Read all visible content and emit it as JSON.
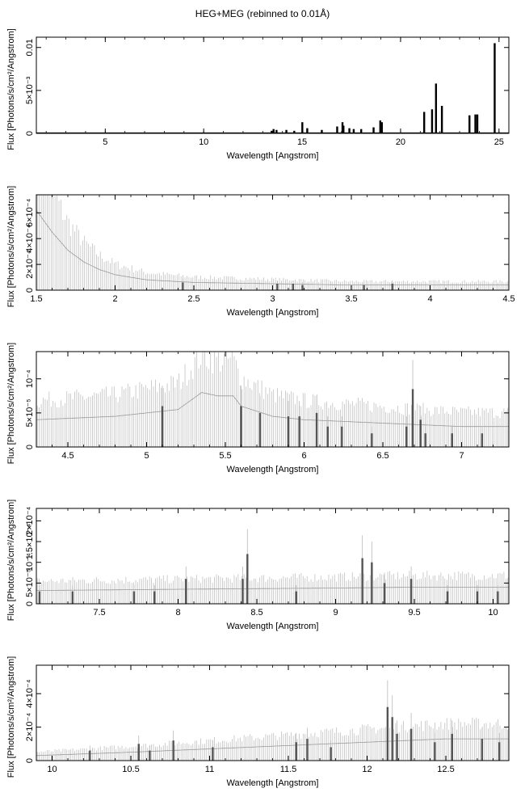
{
  "title": "HEG+MEG (rebinned to 0.01Å)",
  "colors": {
    "line": "#000000",
    "errorbar": "#b8b8b8",
    "dense": "#555555"
  },
  "chart_data": [
    {
      "type": "line",
      "xlabel": "Wavelength [Angstrom]",
      "ylabel": "Flux [Photons/s/cm²/Angstrom]",
      "xlim": [
        1.5,
        25.5
      ],
      "ylim": [
        0,
        0.0112
      ],
      "xticks": [
        5,
        10,
        15,
        20,
        25
      ],
      "xtick_labels": [
        "5",
        "10",
        "15",
        "20",
        "25"
      ],
      "yticks": [
        0,
        0.005,
        0.01
      ],
      "ytick_labels": [
        "0",
        "5×10⁻³",
        "0.01"
      ],
      "baseline": 5e-05,
      "lines": [
        {
          "x": 13.45,
          "y": 0.0003
        },
        {
          "x": 13.55,
          "y": 0.0005
        },
        {
          "x": 13.7,
          "y": 0.0004
        },
        {
          "x": 14.2,
          "y": 0.0004
        },
        {
          "x": 14.6,
          "y": 0.0003
        },
        {
          "x": 15.01,
          "y": 0.0013
        },
        {
          "x": 15.26,
          "y": 0.0006
        },
        {
          "x": 16.0,
          "y": 0.0004
        },
        {
          "x": 16.78,
          "y": 0.0008
        },
        {
          "x": 17.05,
          "y": 0.0013
        },
        {
          "x": 17.1,
          "y": 0.0009
        },
        {
          "x": 17.4,
          "y": 0.0006
        },
        {
          "x": 17.62,
          "y": 0.0005
        },
        {
          "x": 18.0,
          "y": 0.0005
        },
        {
          "x": 18.63,
          "y": 0.0007
        },
        {
          "x": 18.97,
          "y": 0.0015
        },
        {
          "x": 19.05,
          "y": 0.0013
        },
        {
          "x": 21.2,
          "y": 0.0025
        },
        {
          "x": 21.6,
          "y": 0.0028
        },
        {
          "x": 21.8,
          "y": 0.0058
        },
        {
          "x": 22.1,
          "y": 0.0032
        },
        {
          "x": 23.5,
          "y": 0.0021
        },
        {
          "x": 23.8,
          "y": 0.0022
        },
        {
          "x": 23.9,
          "y": 0.0022
        },
        {
          "x": 24.78,
          "y": 0.0105
        }
      ]
    },
    {
      "type": "line",
      "xlabel": "Wavelength [Angstrom]",
      "ylabel": "Flux [Photons/s/cm²/Angstrom]",
      "xlim": [
        1.5,
        4.5
      ],
      "ylim": [
        0,
        0.00074
      ],
      "xticks": [
        1.5,
        2,
        2.5,
        3,
        3.5,
        4,
        4.5
      ],
      "xtick_labels": [
        "1.5",
        "2",
        "2.5",
        "3",
        "3.5",
        "4",
        "4.5"
      ],
      "yticks": [
        0,
        0.0002,
        0.0004,
        0.0006
      ],
      "ytick_labels": [
        "0",
        "2×10⁻⁴",
        "4×10⁻⁴",
        "6×10⁻⁴"
      ],
      "continuum": [
        [
          1.5,
          0.00062
        ],
        [
          1.6,
          0.00045
        ],
        [
          1.7,
          0.00031
        ],
        [
          1.8,
          0.00022
        ],
        [
          1.9,
          0.00016
        ],
        [
          2.0,
          0.00012
        ],
        [
          2.2,
          8e-05
        ],
        [
          2.5,
          6e-05
        ],
        [
          3.0,
          5e-05
        ],
        [
          3.5,
          4e-05
        ],
        [
          4.5,
          4e-05
        ]
      ],
      "lines": [
        {
          "x": 2.43,
          "y": 6e-05
        },
        {
          "x": 3.03,
          "y": 5e-05
        },
        {
          "x": 3.13,
          "y": 5e-05
        },
        {
          "x": 3.19,
          "y": 4e-05
        },
        {
          "x": 3.58,
          "y": 4e-05
        },
        {
          "x": 3.76,
          "y": 5e-05
        }
      ]
    },
    {
      "type": "line",
      "xlabel": "Wavelength [Angstrom]",
      "ylabel": "Flux [Photons/s/cm²/Angstrom]",
      "xlim": [
        4.3,
        7.3
      ],
      "ylim": [
        0,
        0.00014
      ],
      "xticks": [
        4.5,
        5,
        5.5,
        6,
        6.5,
        7
      ],
      "xtick_labels": [
        "4.5",
        "5",
        "5.5",
        "6",
        "6.5",
        "7"
      ],
      "yticks": [
        0,
        5e-05,
        0.0001
      ],
      "ytick_labels": [
        "0",
        "5×10⁻⁵",
        "10⁻⁴"
      ],
      "continuum": [
        [
          4.3,
          4e-05
        ],
        [
          4.8,
          4.5e-05
        ],
        [
          5.0,
          5e-05
        ],
        [
          5.2,
          5.5e-05
        ],
        [
          5.35,
          8e-05
        ],
        [
          5.45,
          7.5e-05
        ],
        [
          5.55,
          7.5e-05
        ],
        [
          5.6,
          6e-05
        ],
        [
          5.8,
          4.5e-05
        ],
        [
          6.0,
          4e-05
        ],
        [
          6.5,
          3.5e-05
        ],
        [
          7.0,
          3e-05
        ],
        [
          7.3,
          3e-05
        ]
      ],
      "lines": [
        {
          "x": 5.1,
          "y": 6e-05
        },
        {
          "x": 5.6,
          "y": 6e-05
        },
        {
          "x": 5.72,
          "y": 5e-05
        },
        {
          "x": 5.9,
          "y": 4.5e-05
        },
        {
          "x": 5.97,
          "y": 4.5e-05
        },
        {
          "x": 6.08,
          "y": 5e-05
        },
        {
          "x": 6.15,
          "y": 3e-05
        },
        {
          "x": 6.24,
          "y": 3e-05
        },
        {
          "x": 6.43,
          "y": 2e-05
        },
        {
          "x": 6.65,
          "y": 3e-05
        },
        {
          "x": 6.69,
          "y": 8.5e-05
        },
        {
          "x": 6.74,
          "y": 4e-05
        },
        {
          "x": 6.77,
          "y": 2e-05
        },
        {
          "x": 6.94,
          "y": 2e-05
        },
        {
          "x": 7.13,
          "y": 2e-05
        }
      ]
    },
    {
      "type": "line",
      "xlabel": "Wavelength [Angstrom]",
      "ylabel": "Flux [Photons/s/cm²/Angstrom]",
      "xlim": [
        7.1,
        10.1
      ],
      "ylim": [
        0,
        0.00023
      ],
      "xticks": [
        7.5,
        8,
        8.5,
        9,
        9.5,
        10
      ],
      "xtick_labels": [
        "7.5",
        "8",
        "8.5",
        "9",
        "9.5",
        "10"
      ],
      "yticks": [
        0,
        5e-05,
        0.0001,
        0.00015,
        0.0002
      ],
      "ytick_labels": [
        "0",
        "5×10⁻⁵",
        "10⁻⁴",
        "1.5×10⁻⁴",
        "2×10⁻⁴"
      ],
      "continuum": [
        [
          7.1,
          3.2e-05
        ],
        [
          8.0,
          3.5e-05
        ],
        [
          9.0,
          3.8e-05
        ],
        [
          9.5,
          4e-05
        ],
        [
          10.1,
          4e-05
        ]
      ],
      "lines": [
        {
          "x": 7.12,
          "y": 3e-05
        },
        {
          "x": 7.33,
          "y": 3e-05
        },
        {
          "x": 7.72,
          "y": 3e-05
        },
        {
          "x": 7.85,
          "y": 3e-05
        },
        {
          "x": 8.05,
          "y": 6e-05
        },
        {
          "x": 8.41,
          "y": 6e-05
        },
        {
          "x": 8.44,
          "y": 0.00012
        },
        {
          "x": 8.75,
          "y": 3e-05
        },
        {
          "x": 9.17,
          "y": 0.00011
        },
        {
          "x": 9.23,
          "y": 0.0001
        },
        {
          "x": 9.31,
          "y": 5e-05
        },
        {
          "x": 9.48,
          "y": 6e-05
        },
        {
          "x": 9.71,
          "y": 3e-05
        },
        {
          "x": 9.9,
          "y": 3e-05
        },
        {
          "x": 10.03,
          "y": 3e-05
        }
      ]
    },
    {
      "type": "line",
      "xlabel": "Wavelength [Angstrom]",
      "ylabel": "Flux [Photons/s/cm²/Angstrom]",
      "xlim": [
        9.9,
        12.9
      ],
      "ylim": [
        0,
        0.00057
      ],
      "xticks": [
        10,
        10.5,
        11,
        11.5,
        12,
        12.5
      ],
      "xtick_labels": [
        "10",
        "10.5",
        "11",
        "11.5",
        "12",
        "12.5"
      ],
      "yticks": [
        0,
        0.0002,
        0.0004
      ],
      "ytick_labels": [
        "0",
        "2×10⁻⁴",
        "4×10⁻⁴"
      ],
      "continuum": [
        [
          9.9,
          3e-05
        ],
        [
          10.5,
          5e-05
        ],
        [
          11.0,
          7e-05
        ],
        [
          11.5,
          9e-05
        ],
        [
          12.0,
          0.00011
        ],
        [
          12.5,
          0.00013
        ],
        [
          12.9,
          0.00013
        ]
      ],
      "lines": [
        {
          "x": 10.24,
          "y": 6e-05
        },
        {
          "x": 10.55,
          "y": 0.0001
        },
        {
          "x": 10.62,
          "y": 6e-05
        },
        {
          "x": 10.77,
          "y": 0.00012
        },
        {
          "x": 11.02,
          "y": 8e-05
        },
        {
          "x": 11.55,
          "y": 0.00011
        },
        {
          "x": 11.62,
          "y": 0.00013
        },
        {
          "x": 11.77,
          "y": 8e-05
        },
        {
          "x": 12.13,
          "y": 0.00032
        },
        {
          "x": 12.16,
          "y": 0.00026
        },
        {
          "x": 12.19,
          "y": 0.00016
        },
        {
          "x": 12.28,
          "y": 0.00019
        },
        {
          "x": 12.43,
          "y": 0.00011
        },
        {
          "x": 12.54,
          "y": 0.00016
        },
        {
          "x": 12.73,
          "y": 0.00013
        },
        {
          "x": 12.84,
          "y": 0.00011
        }
      ]
    }
  ]
}
